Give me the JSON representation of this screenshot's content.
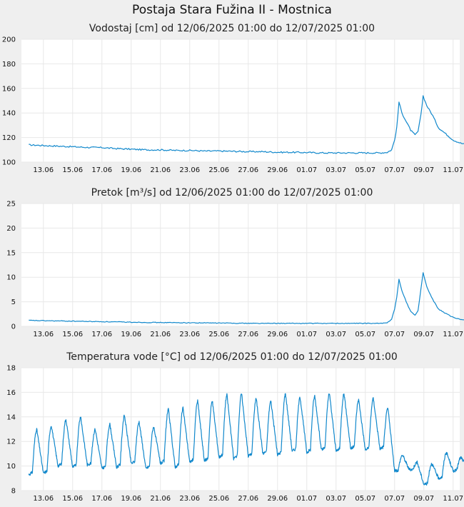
{
  "page_title": "Postaja Stara Fužina II - Mostnica",
  "colors": {
    "series": "#1188cc",
    "plot_bg": "#ffffff",
    "grid": "#e8e8e8",
    "page_bg": "#efefef"
  },
  "chart_data": [
    {
      "type": "line",
      "title": "Vodostaj [cm] od 12/06/2025 01:00 do 12/07/2025 01:00",
      "xlabel": "",
      "ylabel": "",
      "ylim": [
        100,
        200
      ],
      "yticks": [
        "100",
        "120",
        "140",
        "160",
        "180",
        "200"
      ],
      "xticks": [
        "13.06",
        "15.06",
        "17.06",
        "19.06",
        "21.06",
        "23.06",
        "25.06",
        "27.06",
        "29.06",
        "01.07",
        "03.07",
        "05.07",
        "07.07",
        "09.07",
        "11.07"
      ],
      "grid": true,
      "x_day_range": [
        0,
        30
      ],
      "points": [
        [
          0,
          114
        ],
        [
          1,
          113.5
        ],
        [
          2,
          113
        ],
        [
          3,
          112.5
        ],
        [
          4,
          112
        ],
        [
          5,
          111.8
        ],
        [
          6,
          111
        ],
        [
          7,
          110.5
        ],
        [
          8,
          110
        ],
        [
          9,
          110
        ],
        [
          10,
          109.5
        ],
        [
          11,
          109.5
        ],
        [
          12,
          109
        ],
        [
          13,
          109
        ],
        [
          14,
          108.8
        ],
        [
          15,
          108.5
        ],
        [
          16,
          108.5
        ],
        [
          17,
          108
        ],
        [
          18,
          108
        ],
        [
          19,
          107.8
        ],
        [
          20,
          107.5
        ],
        [
          21,
          107.5
        ],
        [
          22,
          107.5
        ],
        [
          23,
          107.5
        ],
        [
          24,
          107.5
        ],
        [
          24.5,
          108
        ],
        [
          24.8,
          110
        ],
        [
          25.0,
          118
        ],
        [
          25.15,
          128
        ],
        [
          25.3,
          149
        ],
        [
          25.5,
          140
        ],
        [
          25.8,
          133
        ],
        [
          26.1,
          126
        ],
        [
          26.4,
          122
        ],
        [
          26.6,
          125
        ],
        [
          26.8,
          138
        ],
        [
          26.95,
          154
        ],
        [
          27.2,
          146
        ],
        [
          27.6,
          138
        ],
        [
          28.0,
          128
        ],
        [
          28.5,
          123
        ],
        [
          29.0,
          118
        ],
        [
          29.5,
          115.5
        ],
        [
          30,
          114
        ]
      ]
    },
    {
      "type": "line",
      "title": "Pretok [m³/s] od 12/06/2025 01:00 do 12/07/2025 01:00",
      "xlabel": "",
      "ylabel": "",
      "ylim": [
        0,
        25
      ],
      "yticks": [
        "0",
        "5",
        "10",
        "15",
        "20",
        "25"
      ],
      "xticks": [
        "13.06",
        "15.06",
        "17.06",
        "19.06",
        "21.06",
        "23.06",
        "25.06",
        "27.06",
        "29.06",
        "01.07",
        "03.07",
        "05.07",
        "07.07",
        "09.07",
        "11.07"
      ],
      "grid": true,
      "x_day_range": [
        0,
        30
      ],
      "points": [
        [
          0,
          1.2
        ],
        [
          2,
          1.1
        ],
        [
          4,
          1.0
        ],
        [
          6,
          0.9
        ],
        [
          8,
          0.8
        ],
        [
          10,
          0.75
        ],
        [
          12,
          0.7
        ],
        [
          14,
          0.65
        ],
        [
          16,
          0.6
        ],
        [
          18,
          0.6
        ],
        [
          20,
          0.6
        ],
        [
          22,
          0.6
        ],
        [
          24,
          0.6
        ],
        [
          24.5,
          0.7
        ],
        [
          24.8,
          1.5
        ],
        [
          25.0,
          3.5
        ],
        [
          25.15,
          6
        ],
        [
          25.3,
          9.6
        ],
        [
          25.5,
          7.2
        ],
        [
          25.8,
          5
        ],
        [
          26.1,
          3
        ],
        [
          26.4,
          2.3
        ],
        [
          26.6,
          3.2
        ],
        [
          26.8,
          7.5
        ],
        [
          26.95,
          11
        ],
        [
          27.2,
          8
        ],
        [
          27.6,
          5.5
        ],
        [
          28.0,
          3.5
        ],
        [
          28.5,
          2.6
        ],
        [
          29.0,
          1.8
        ],
        [
          29.5,
          1.4
        ],
        [
          30,
          1.2
        ]
      ]
    },
    {
      "type": "line",
      "title": "Temperatura vode [°C] od 12/06/2025 01:00 do 12/07/2025 01:00",
      "xlabel": "",
      "ylabel": "",
      "ylim": [
        8,
        18
      ],
      "yticks": [
        "8",
        "10",
        "12",
        "14",
        "16",
        "18"
      ],
      "xticks": [
        "13.06",
        "15.06",
        "17.06",
        "19.06",
        "21.06",
        "23.06",
        "25.06",
        "27.06",
        "29.06",
        "01.07",
        "03.07",
        "05.07",
        "07.07",
        "09.07",
        "11.07"
      ],
      "grid": true,
      "x_day_range": [
        0,
        30
      ],
      "daily_min": [
        9.3,
        9.4,
        10.0,
        9.9,
        10.1,
        9.8,
        9.9,
        10.2,
        9.8,
        10.2,
        9.9,
        10.3,
        10.4,
        10.7,
        10.6,
        10.8,
        11.0,
        10.9,
        11.2,
        11.1,
        11.3,
        11.2,
        11.4,
        11.3,
        11.4,
        9.6,
        9.7,
        8.5,
        9.0,
        9.6,
        9.8
      ],
      "daily_max": [
        13.0,
        13.3,
        13.8,
        14.0,
        13.0,
        13.4,
        14.1,
        13.6,
        13.2,
        14.6,
        14.7,
        15.3,
        15.3,
        15.8,
        15.9,
        15.5,
        15.3,
        15.9,
        15.6,
        15.7,
        15.9,
        15.9,
        15.4,
        15.5,
        14.7,
        10.9,
        10.3,
        10.2,
        11.1,
        10.7
      ]
    }
  ]
}
